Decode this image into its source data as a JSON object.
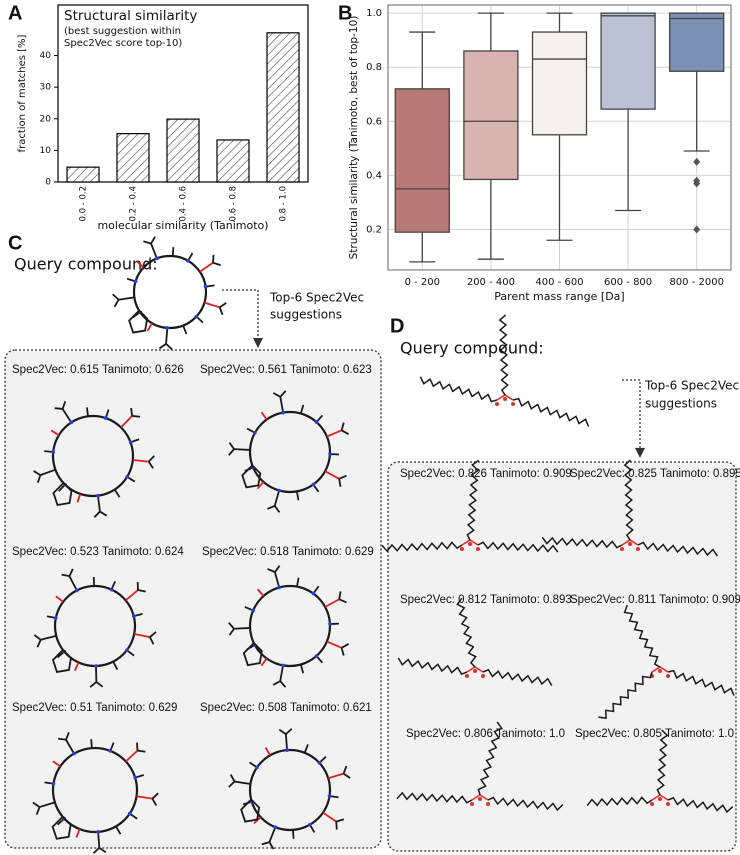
{
  "chart_data": [
    {
      "type": "bar",
      "panel": "A",
      "title": "Structural similarity",
      "subtitle": [
        "(best suggestion within",
        "Spec2Vec  score top-10)"
      ],
      "x_label": "molecular similarity (Tanimoto)",
      "y_label": "fraction of matches [%]",
      "categories": [
        "0.0 - 0.2",
        "0.2 - 0.4",
        "0.4 - 0.6",
        "0.6 - 0.8",
        "0.8 - 1.0"
      ],
      "values": [
        4.7,
        15.3,
        19.9,
        13.3,
        47.2
      ],
      "color": "#ffffff",
      "hatch_color": "#444444",
      "edgecolor": "#000000",
      "ylim": [
        0,
        56
      ],
      "yticks": [
        0,
        10,
        20,
        30,
        40
      ]
    },
    {
      "type": "box",
      "panel": "B",
      "x_label": "Parent mass range  [Da]",
      "y_label": "Structural similarity (Tanimoto, best of top-10)",
      "categories": [
        "0 - 200",
        "200 - 400",
        "400 - 600",
        "600 - 800",
        "800 - 2000"
      ],
      "colors": [
        "#b87a78",
        "#d9b3af",
        "#f6f0ef",
        "#b9c1d3",
        "#7b92b6"
      ],
      "boxes": [
        {
          "low": 0.08,
          "q1": 0.19,
          "median": 0.35,
          "q3": 0.72,
          "high": 0.93
        },
        {
          "low": 0.09,
          "q1": 0.385,
          "median": 0.6,
          "q3": 0.86,
          "high": 1.0
        },
        {
          "low": 0.16,
          "q1": 0.55,
          "median": 0.83,
          "q3": 0.93,
          "high": 1.0
        },
        {
          "low": 0.27,
          "q1": 0.645,
          "median": 0.99,
          "q3": 1.0,
          "high": 1.0
        },
        {
          "low": 0.49,
          "q1": 0.785,
          "median": 0.98,
          "q3": 1.0,
          "high": 1.0
        }
      ],
      "outliers": [
        [],
        [],
        [],
        [],
        [
          0.45,
          0.38,
          0.37,
          0.2
        ]
      ],
      "ylim": [
        0.05,
        1.03
      ],
      "yticks": [
        0.2,
        0.4,
        0.6,
        0.8,
        {
          "value": 1,
          "label": "1.0"
        }
      ],
      "grid": true
    }
  ],
  "panels": {
    "C": {
      "label": "C",
      "query": "Query compound:",
      "arrow_text": [
        "Top-6 Spec2Vec",
        "suggestions"
      ],
      "suggestions": [
        "Spec2Vec: 0.615 Tanimoto: 0.626",
        "Spec2Vec: 0.561 Tanimoto: 0.623",
        "Spec2Vec: 0.523 Tanimoto: 0.624",
        "Spec2Vec: 0.518 Tanimoto: 0.629",
        "Spec2Vec: 0.51 Tanimoto: 0.629",
        "Spec2Vec: 0.508 Tanimoto: 0.621"
      ]
    },
    "D": {
      "label": "D",
      "query": "Query compound:",
      "arrow_text": [
        "Top-6 Spec2Vec",
        "suggestions"
      ],
      "suggestions": [
        "Spec2Vec: 0.826 Tanimoto: 0.909",
        "Spec2Vec: 0.825 Tanimoto: 0.895",
        "Spec2Vec: 0.812 Tanimoto: 0.893",
        "Spec2Vec: 0.811 Tanimoto: 0.909",
        "Spec2Vec: 0.806 Tanimoto: 1.0",
        "Spec2Vec: 0.805 Tanimoto: 1.0"
      ]
    }
  }
}
